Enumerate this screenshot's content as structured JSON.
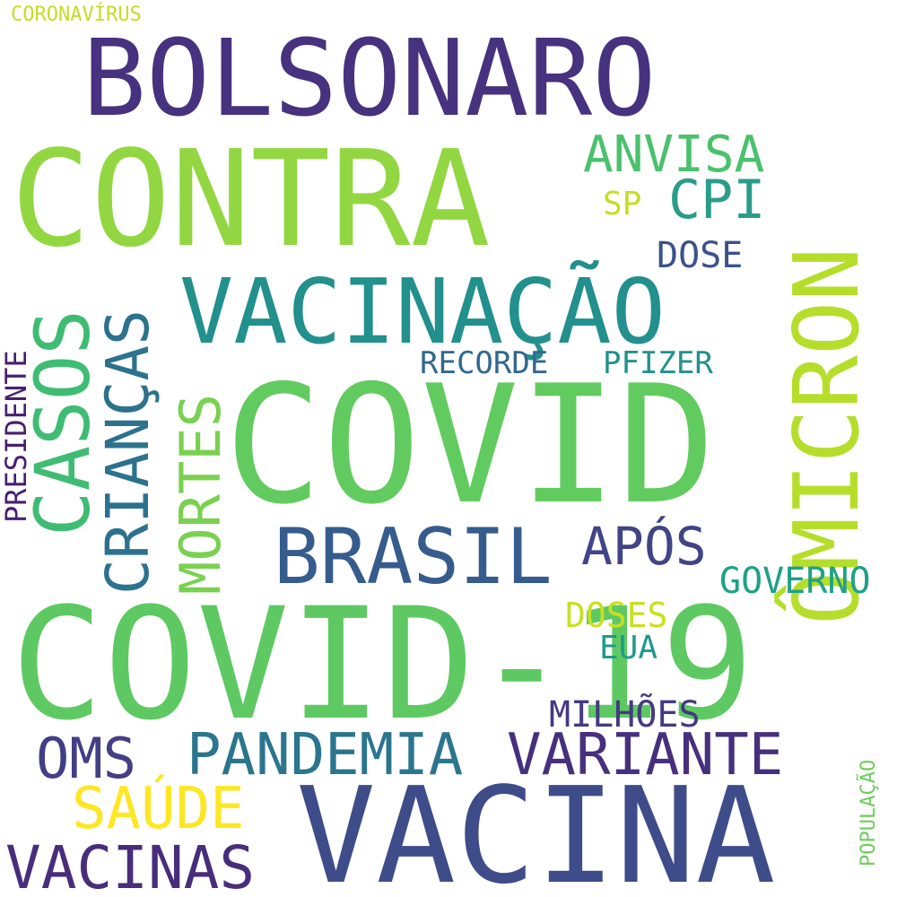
{
  "words": [
    {
      "id": "bolsonaro",
      "text": "BOLSONARO",
      "color": "#46327e"
    },
    {
      "id": "contra",
      "text": "CONTRA",
      "color": "#92d742"
    },
    {
      "id": "covid",
      "text": "COVID",
      "color": "#62cb5f"
    },
    {
      "id": "covid-19",
      "text": "COVID-19",
      "color": "#5ec962"
    },
    {
      "id": "vacina",
      "text": "VACINA",
      "color": "#3e4c8a"
    },
    {
      "id": "vacinacao",
      "text": "VACINAÇÃO",
      "color": "#22908d"
    },
    {
      "id": "omicron",
      "text": "ÔMICRON",
      "color": "#b5de2b"
    },
    {
      "id": "brasil",
      "text": "BRASIL",
      "color": "#365c8d"
    },
    {
      "id": "casos",
      "text": "CASOS",
      "color": "#3fbc73"
    },
    {
      "id": "criancas",
      "text": "CRIANÇAS",
      "color": "#2c728e"
    },
    {
      "id": "mortes",
      "text": "MORTES",
      "color": "#7ad151"
    },
    {
      "id": "pandemia",
      "text": "PANDEMIA",
      "color": "#2b758e"
    },
    {
      "id": "variante",
      "text": "VARIANTE",
      "color": "#46307e"
    },
    {
      "id": "vacinas",
      "text": "VACINAS",
      "color": "#472d7b"
    },
    {
      "id": "saude",
      "text": "SAÚDE",
      "color": "#fde725"
    },
    {
      "id": "oms",
      "text": "OMS",
      "color": "#433e85"
    },
    {
      "id": "anvisa",
      "text": "ANVISA",
      "color": "#4ac16d"
    },
    {
      "id": "cpi",
      "text": "CPI",
      "color": "#2a9d8a"
    },
    {
      "id": "sp",
      "text": "SP",
      "color": "#c2df23"
    },
    {
      "id": "dose",
      "text": "DOSE",
      "color": "#3b528b"
    },
    {
      "id": "apos",
      "text": "APÓS",
      "color": "#414487"
    },
    {
      "id": "governo",
      "text": "GOVERNO",
      "color": "#1fa187"
    },
    {
      "id": "doses",
      "text": "DOSES",
      "color": "#c8e020"
    },
    {
      "id": "eua",
      "text": "EUA",
      "color": "#1f9a8a"
    },
    {
      "id": "milhoes",
      "text": "MILHÕES",
      "color": "#443983"
    },
    {
      "id": "recorde",
      "text": "RECORDE",
      "color": "#31688e"
    },
    {
      "id": "pfizer",
      "text": "PFIZER",
      "color": "#21918c"
    },
    {
      "id": "presidente",
      "text": "PRESIDENTE",
      "color": "#481f70"
    },
    {
      "id": "coronavirus",
      "text": "CORONAVÍRUS",
      "color": "#c0df25"
    },
    {
      "id": "populacao",
      "text": "POPULAÇÃO",
      "color": "#6ccd5a"
    }
  ]
}
